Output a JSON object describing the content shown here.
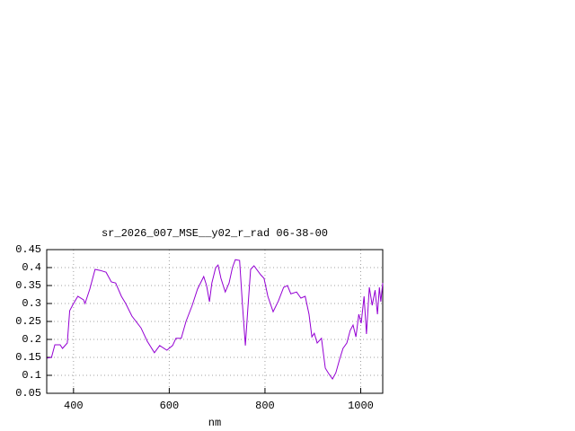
{
  "chart_data": {
    "type": "line",
    "title": "sr_2026_007_MSE__y02_r_rad 06-38-00",
    "x_label": "nm",
    "xlim": [
      344,
      1046
    ],
    "ylim": [
      0.05,
      0.45
    ],
    "xticks": [
      400,
      600,
      800,
      1000
    ],
    "yticks": [
      {
        "value": 0.05,
        "label": "0.05"
      },
      {
        "value": 0.1,
        "label": "0.1"
      },
      {
        "value": 0.15,
        "label": "0.15"
      },
      {
        "value": 0.2,
        "label": "0.2"
      },
      {
        "value": 0.25,
        "label": "0.25"
      },
      {
        "value": 0.3,
        "label": "0.3"
      },
      {
        "value": 0.35,
        "label": "0.35"
      },
      {
        "value": 0.4,
        "label": "0.4"
      },
      {
        "value": 0.45,
        "label": "0.45"
      }
    ],
    "grid": true,
    "x": [
      345,
      354,
      361,
      372,
      377,
      387,
      392,
      400,
      409,
      421,
      424,
      434,
      445,
      456,
      468,
      479,
      488,
      500,
      509,
      522,
      541,
      554,
      569,
      580,
      595,
      607,
      614,
      625,
      635,
      648,
      659,
      672,
      678,
      684,
      689,
      697,
      702,
      708,
      717,
      725,
      732,
      738,
      747,
      753,
      759,
      764,
      770,
      777,
      791,
      798,
      806,
      817,
      828,
      839,
      847,
      854,
      866,
      875,
      884,
      892,
      898,
      903,
      909,
      918,
      926,
      933,
      941,
      948,
      956,
      963,
      971,
      978,
      984,
      990,
      996,
      1001,
      1007,
      1012,
      1018,
      1024,
      1030,
      1035,
      1039,
      1042,
      1046
    ],
    "series": [
      {
        "color": "#9400d3",
        "values": [
          0.148,
          0.15,
          0.185,
          0.185,
          0.175,
          0.19,
          0.28,
          0.3,
          0.32,
          0.31,
          0.3,
          0.34,
          0.395,
          0.392,
          0.387,
          0.36,
          0.357,
          0.32,
          0.3,
          0.265,
          0.232,
          0.195,
          0.163,
          0.183,
          0.17,
          0.183,
          0.203,
          0.203,
          0.25,
          0.295,
          0.34,
          0.375,
          0.35,
          0.305,
          0.357,
          0.4,
          0.407,
          0.37,
          0.332,
          0.357,
          0.4,
          0.422,
          0.42,
          0.295,
          0.183,
          0.282,
          0.395,
          0.405,
          0.38,
          0.37,
          0.32,
          0.277,
          0.307,
          0.345,
          0.35,
          0.327,
          0.332,
          0.315,
          0.32,
          0.27,
          0.207,
          0.217,
          0.19,
          0.203,
          0.12,
          0.105,
          0.09,
          0.107,
          0.145,
          0.175,
          0.19,
          0.225,
          0.24,
          0.207,
          0.27,
          0.245,
          0.32,
          0.215,
          0.345,
          0.295,
          0.337,
          0.27,
          0.345,
          0.305,
          0.357
        ]
      }
    ]
  }
}
